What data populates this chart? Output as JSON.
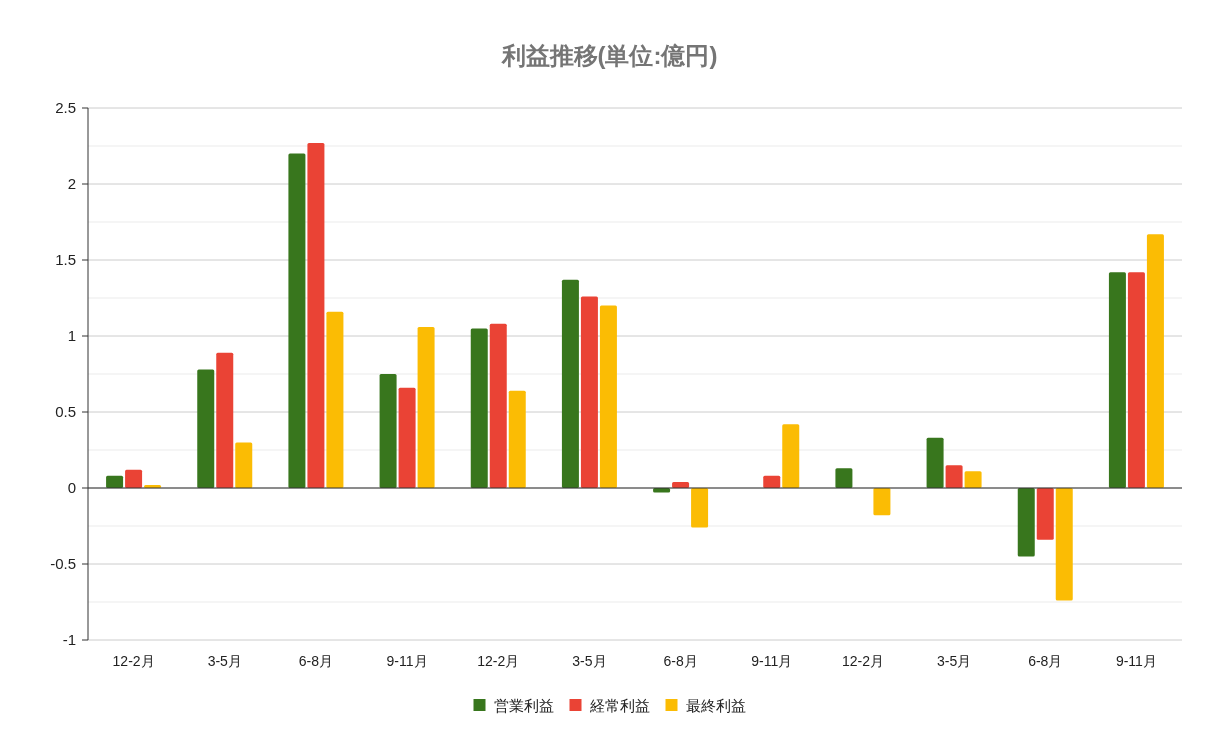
{
  "chart_data": {
    "type": "bar",
    "title": "利益推移(単位:億円)",
    "categories": [
      "12-2月",
      "3-5月",
      "6-8月",
      "9-11月",
      "12-2月",
      "3-5月",
      "6-8月",
      "9-11月",
      "12-2月",
      "3-5月",
      "6-8月",
      "9-11月"
    ],
    "series": [
      {
        "name": "営業利益",
        "color": "#38761d",
        "values": [
          0.08,
          0.78,
          2.2,
          0.75,
          1.05,
          1.37,
          -0.03,
          null,
          0.13,
          0.33,
          -0.45,
          1.42
        ]
      },
      {
        "name": "経常利益",
        "color": "#ea4335",
        "values": [
          0.12,
          0.89,
          2.27,
          0.66,
          1.08,
          1.26,
          0.04,
          0.08,
          null,
          0.15,
          -0.34,
          1.42
        ]
      },
      {
        "name": "最終利益",
        "color": "#fbbc04",
        "values": [
          0.02,
          0.3,
          1.16,
          1.06,
          0.64,
          1.2,
          -0.26,
          0.42,
          -0.18,
          0.11,
          -0.74,
          1.67
        ]
      }
    ],
    "ylim": [
      -1,
      2.5
    ],
    "yticks": [
      -1,
      {
        "value": -0.75,
        "label": null
      },
      -0.5,
      {
        "value": -0.25,
        "label": null
      },
      0,
      {
        "value": 0.25,
        "label": null
      },
      0.5,
      {
        "value": 0.75,
        "label": null
      },
      1,
      {
        "value": 1.25,
        "label": null
      },
      1.5,
      {
        "value": 1.75,
        "label": null
      },
      2,
      {
        "value": 2.25,
        "label": null
      },
      2.5
    ],
    "grid": true,
    "legend": "bottom"
  }
}
